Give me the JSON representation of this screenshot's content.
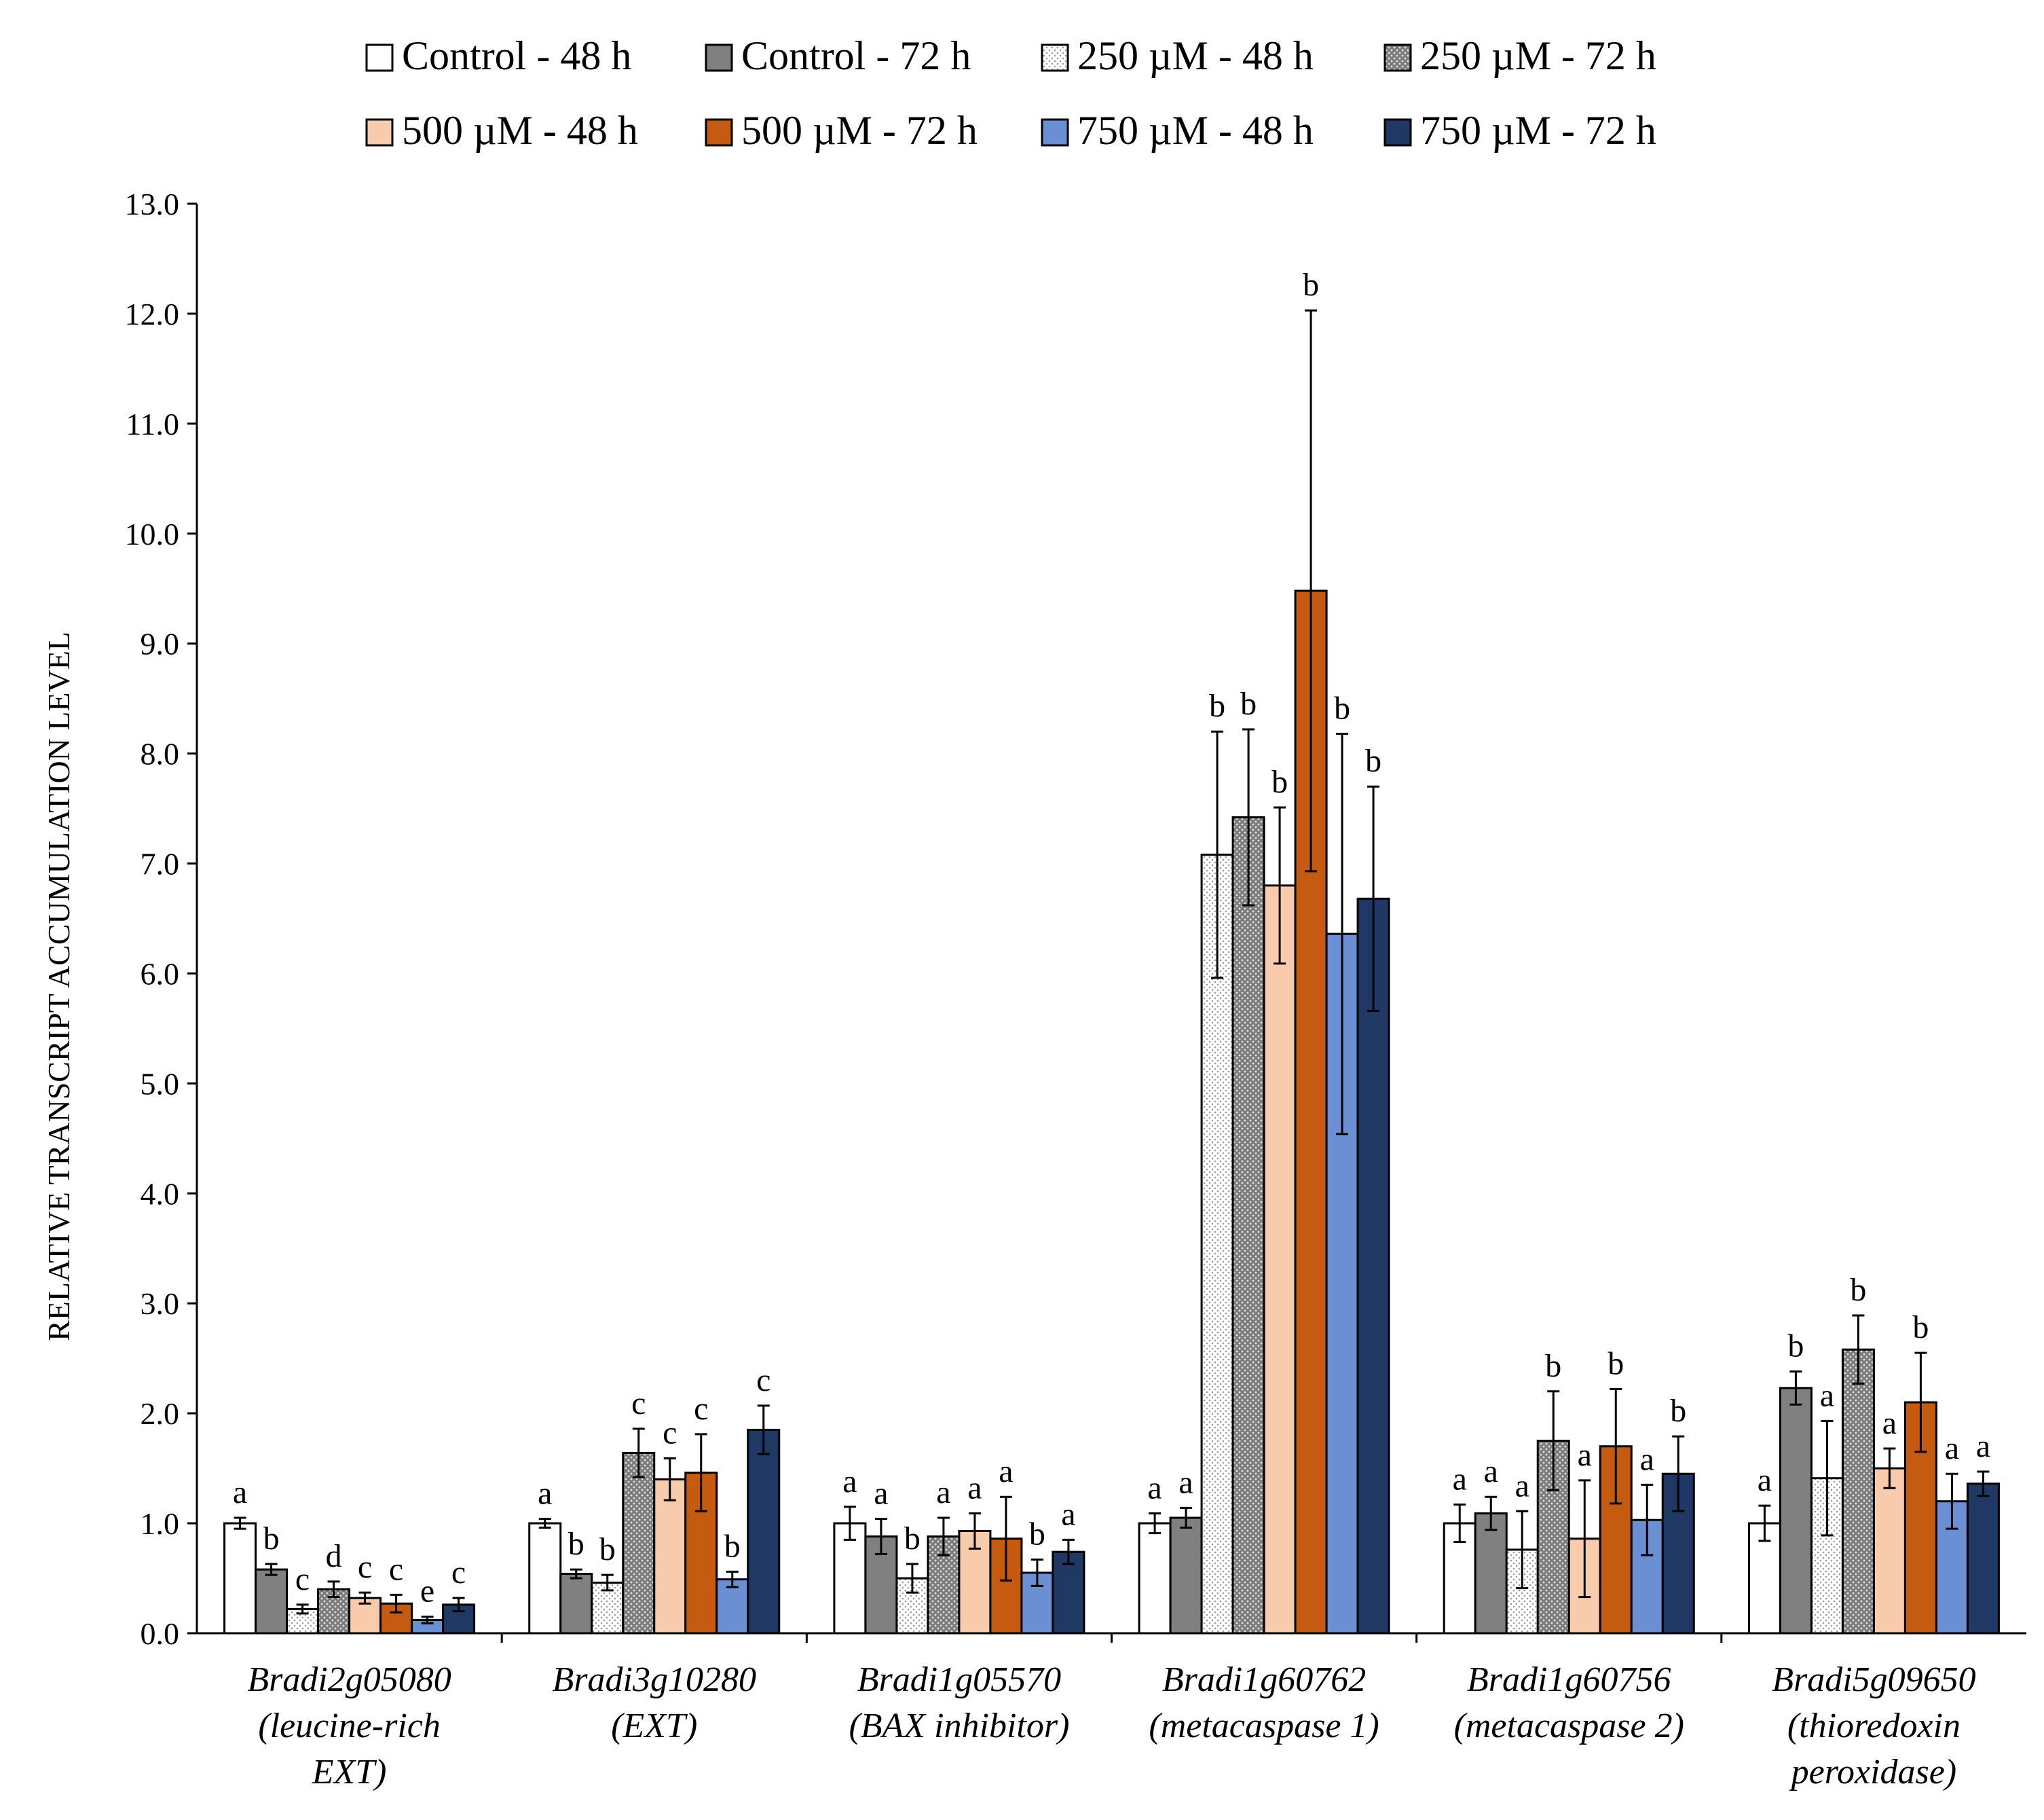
{
  "chart_data": {
    "type": "bar",
    "title": "",
    "xlabel": "",
    "ylabel": "RELATIVE TRANSCRIPT ACCUMULATION LEVEL",
    "ylim": [
      0,
      13
    ],
    "ytick_step": 1,
    "ytick_labels": [
      "0.0",
      "1.0",
      "2.0",
      "3.0",
      "4.0",
      "5.0",
      "6.0",
      "7.0",
      "8.0",
      "9.0",
      "10.0",
      "11.0",
      "12.0",
      "13.0"
    ],
    "legend_position": "top",
    "categories": [
      [
        "Bradi2g05080",
        "(leucine-rich",
        "EXT)"
      ],
      [
        "Bradi3g10280",
        "(EXT)"
      ],
      [
        "Bradi1g05570",
        "(BAX inhibitor)"
      ],
      [
        "Bradi1g60762",
        "(metacaspase 1)"
      ],
      [
        "Bradi1g60756",
        "(metacaspase 2)"
      ],
      [
        "Bradi5g09650",
        "(thioredoxin",
        "peroxidase)"
      ]
    ],
    "series": [
      {
        "name": "Control - 48 h",
        "color": "#ffffff",
        "pattern": "none",
        "values": [
          1.0,
          1.0,
          1.0,
          1.0,
          1.0,
          1.0
        ],
        "errors": [
          0.05,
          0.04,
          0.15,
          0.09,
          0.17,
          0.16
        ],
        "letters": [
          "a",
          "a",
          "a",
          "a",
          "a",
          "a"
        ]
      },
      {
        "name": "Control - 72 h",
        "color": "#808080",
        "pattern": "none",
        "values": [
          0.58,
          0.54,
          0.88,
          1.05,
          1.09,
          2.23
        ],
        "errors": [
          0.05,
          0.04,
          0.16,
          0.09,
          0.15,
          0.15
        ],
        "letters": [
          "b",
          "b",
          "a",
          "a",
          "a",
          "b"
        ]
      },
      {
        "name": "250 µM  - 48 h",
        "color": "#ffffff",
        "pattern": "dots-light",
        "values": [
          0.22,
          0.46,
          0.5,
          7.08,
          0.76,
          1.41
        ],
        "errors": [
          0.04,
          0.07,
          0.13,
          1.12,
          0.35,
          0.52
        ],
        "letters": [
          "c",
          "b",
          "b",
          "b",
          "a",
          "a"
        ]
      },
      {
        "name": "250 µM  - 72 h",
        "color": "#808080",
        "pattern": "dots-dark",
        "values": [
          0.4,
          1.64,
          0.88,
          7.42,
          1.75,
          2.58
        ],
        "errors": [
          0.07,
          0.22,
          0.17,
          0.8,
          0.45,
          0.31
        ],
        "letters": [
          "d",
          "c",
          "a",
          "b",
          "b",
          "b"
        ]
      },
      {
        "name": "500 µM  - 48 h",
        "color": "#f8cbad",
        "pattern": "none",
        "values": [
          0.32,
          1.4,
          0.93,
          6.8,
          0.86,
          1.5
        ],
        "errors": [
          0.05,
          0.19,
          0.16,
          0.71,
          0.53,
          0.18
        ],
        "letters": [
          "c",
          "c",
          "a",
          "b",
          "a",
          "a"
        ]
      },
      {
        "name": "500 µM  - 72 h",
        "color": "#c55a11",
        "pattern": "none",
        "values": [
          0.27,
          1.46,
          0.86,
          9.48,
          1.7,
          2.1
        ],
        "errors": [
          0.08,
          0.35,
          0.38,
          2.55,
          0.52,
          0.45
        ],
        "letters": [
          "c",
          "c",
          "a",
          "b",
          "b",
          "b"
        ]
      },
      {
        "name": "750 µM  - 48 h",
        "color": "#6a8fd2",
        "pattern": "none",
        "values": [
          0.12,
          0.49,
          0.55,
          6.36,
          1.03,
          1.2
        ],
        "errors": [
          0.03,
          0.07,
          0.12,
          1.82,
          0.32,
          0.25
        ],
        "letters": [
          "e",
          "b",
          "b",
          "b",
          "a",
          "a"
        ]
      },
      {
        "name": "750 µM  - 72 h",
        "color": "#203864",
        "pattern": "none",
        "values": [
          0.26,
          1.85,
          0.74,
          6.68,
          1.45,
          1.36
        ],
        "errors": [
          0.06,
          0.22,
          0.11,
          1.02,
          0.34,
          0.11
        ],
        "letters": [
          "c",
          "c",
          "a",
          "b",
          "b",
          "a"
        ]
      }
    ]
  }
}
